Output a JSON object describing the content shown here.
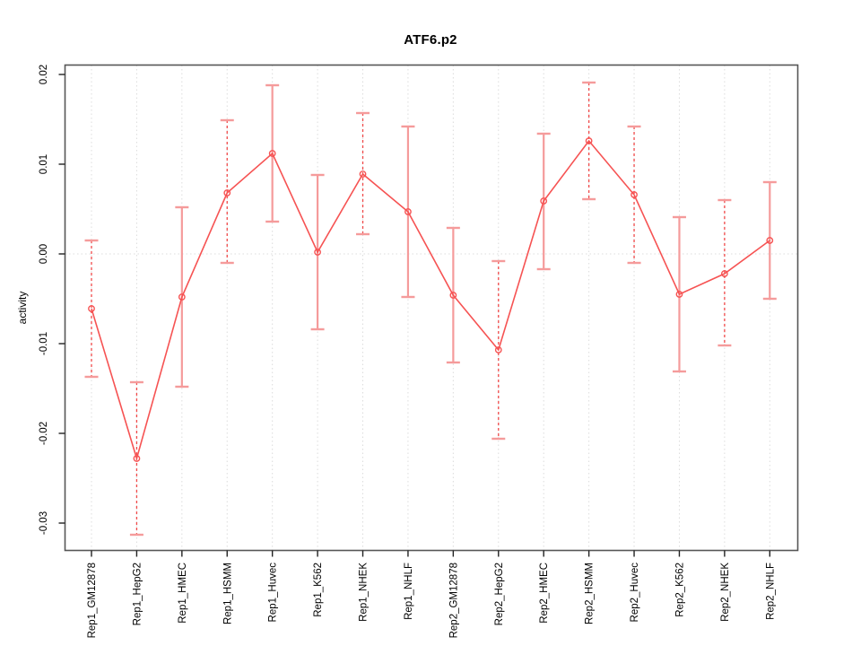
{
  "window": {
    "background": "#ffffff"
  },
  "chart_data": {
    "type": "line",
    "title": "ATF6.p2",
    "xlabel": "",
    "ylabel": "activity",
    "categories": [
      "Rep1_GM12878",
      "Rep1_HepG2",
      "Rep1_HMEC",
      "Rep1_HSMM",
      "Rep1_Huvec",
      "Rep1_K562",
      "Rep1_NHEK",
      "Rep1_NHLF",
      "Rep2_GM12878",
      "Rep2_HepG2",
      "Rep2_HMEC",
      "Rep2_HSMM",
      "Rep2_Huvec",
      "Rep2_K562",
      "Rep2_NHEK",
      "Rep2_NHLF"
    ],
    "series": [
      {
        "name": "activity",
        "values": [
          -0.0061,
          -0.0228,
          -0.0048,
          0.0068,
          0.0112,
          0.0002,
          0.0089,
          0.0047,
          -0.0046,
          -0.0107,
          0.0059,
          0.0126,
          0.0066,
          -0.0045,
          -0.0022,
          0.0015
        ],
        "ci_high": [
          0.0015,
          -0.0143,
          0.0052,
          0.0149,
          0.0188,
          0.0088,
          0.0157,
          0.0142,
          0.0029,
          -0.0008,
          0.0134,
          0.0191,
          0.0142,
          0.0041,
          0.006,
          0.008
        ],
        "ci_low": [
          -0.0137,
          -0.0313,
          -0.0148,
          -0.001,
          0.0036,
          -0.0084,
          0.0022,
          -0.0048,
          -0.0121,
          -0.0206,
          -0.0017,
          0.0061,
          -0.001,
          -0.0131,
          -0.0102,
          -0.005
        ],
        "stem_dashed": [
          true,
          true,
          false,
          true,
          false,
          false,
          true,
          false,
          false,
          true,
          false,
          true,
          true,
          false,
          true,
          false
        ]
      }
    ],
    "yticks": {
      "values": [
        0.02,
        0.01,
        0.0,
        -0.01,
        -0.02,
        -0.03
      ],
      "labels": [
        "0.02",
        "0.01",
        "0.00",
        "-0.01",
        "-0.02",
        "-0.03"
      ]
    },
    "ylim": [
      -0.033,
      0.021
    ],
    "zero_line": true,
    "grid": "vertical-dotted",
    "legend": "none",
    "point_marker": "open-circle",
    "colors": {
      "line": "#f65353",
      "point": "#f65353",
      "errorbar_cap": "#f59b9b",
      "errorbar_stem_solid": "#f59b9b",
      "errorbar_stem_dashed": "#f04a4a",
      "grid": "#dcdcdc",
      "axis_box": "#565656",
      "tick": "#222222",
      "text": "#000000"
    }
  }
}
